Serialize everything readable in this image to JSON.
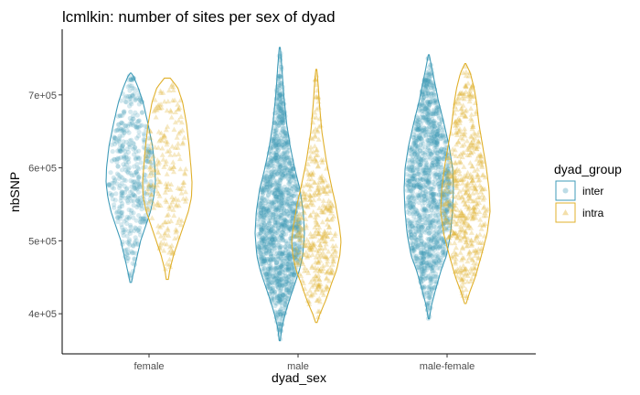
{
  "chart_data": {
    "type": "violin",
    "title": "lcmlkin: number of sites per sex of dyad",
    "xlabel": "dyad_sex",
    "ylabel": "nbSNP",
    "categories": [
      "female",
      "male",
      "male-female"
    ],
    "y_ticks": [
      400000,
      500000,
      600000,
      700000
    ],
    "y_tick_labels": [
      "4e+05",
      "5e+05",
      "6e+05",
      "7e+05"
    ],
    "ylim": [
      345000,
      790000
    ],
    "legend": {
      "title": "dyad_group",
      "position": "right",
      "entries": [
        "inter",
        "intra"
      ]
    },
    "series": [
      {
        "name": "inter",
        "color": "#3f9bb8",
        "marker": "circle",
        "groups": [
          {
            "category": "female",
            "min": 443000,
            "max": 730000,
            "n_points": 450,
            "profile": [
              [
                443000,
                0.03
              ],
              [
                455000,
                0.1
              ],
              [
                470000,
                0.2
              ],
              [
                500000,
                0.4
              ],
              [
                520000,
                0.6
              ],
              [
                540000,
                0.8
              ],
              [
                560000,
                0.93
              ],
              [
                580000,
                1.0
              ],
              [
                600000,
                0.98
              ],
              [
                630000,
                0.88
              ],
              [
                660000,
                0.7
              ],
              [
                690000,
                0.5
              ],
              [
                710000,
                0.3
              ],
              [
                725000,
                0.12
              ],
              [
                730000,
                0.02
              ]
            ]
          },
          {
            "category": "male",
            "min": 363000,
            "max": 765000,
            "n_points": 1400,
            "profile": [
              [
                363000,
                0.02
              ],
              [
                380000,
                0.08
              ],
              [
                400000,
                0.22
              ],
              [
                420000,
                0.4
              ],
              [
                440000,
                0.6
              ],
              [
                460000,
                0.8
              ],
              [
                480000,
                0.93
              ],
              [
                510000,
                1.0
              ],
              [
                540000,
                0.95
              ],
              [
                570000,
                0.82
              ],
              [
                600000,
                0.6
              ],
              [
                630000,
                0.42
              ],
              [
                660000,
                0.28
              ],
              [
                700000,
                0.16
              ],
              [
                740000,
                0.08
              ],
              [
                765000,
                0.02
              ]
            ]
          },
          {
            "category": "male-female",
            "min": 393000,
            "max": 755000,
            "n_points": 1300,
            "profile": [
              [
                393000,
                0.02
              ],
              [
                410000,
                0.1
              ],
              [
                430000,
                0.25
              ],
              [
                460000,
                0.5
              ],
              [
                480000,
                0.72
              ],
              [
                510000,
                0.88
              ],
              [
                540000,
                0.96
              ],
              [
                570000,
                1.0
              ],
              [
                600000,
                0.96
              ],
              [
                630000,
                0.82
              ],
              [
                660000,
                0.62
              ],
              [
                690000,
                0.4
              ],
              [
                720000,
                0.22
              ],
              [
                740000,
                0.1
              ],
              [
                755000,
                0.02
              ]
            ]
          }
        ]
      },
      {
        "name": "intra",
        "color": "#e0b02b",
        "marker": "triangle",
        "groups": [
          {
            "category": "female",
            "min": 447000,
            "max": 723000,
            "n_points": 220,
            "profile": [
              [
                447000,
                0.04
              ],
              [
                460000,
                0.1
              ],
              [
                480000,
                0.25
              ],
              [
                500000,
                0.45
              ],
              [
                520000,
                0.65
              ],
              [
                540000,
                0.85
              ],
              [
                560000,
                0.98
              ],
              [
                580000,
                1.0
              ],
              [
                600000,
                0.96
              ],
              [
                630000,
                0.88
              ],
              [
                660000,
                0.78
              ],
              [
                690000,
                0.62
              ],
              [
                710000,
                0.42
              ],
              [
                723000,
                0.12
              ]
            ]
          },
          {
            "category": "male",
            "min": 388000,
            "max": 735000,
            "n_points": 380,
            "profile": [
              [
                388000,
                0.03
              ],
              [
                400000,
                0.15
              ],
              [
                420000,
                0.4
              ],
              [
                440000,
                0.6
              ],
              [
                460000,
                0.82
              ],
              [
                480000,
                0.95
              ],
              [
                500000,
                1.0
              ],
              [
                520000,
                0.93
              ],
              [
                550000,
                0.78
              ],
              [
                580000,
                0.58
              ],
              [
                610000,
                0.4
              ],
              [
                650000,
                0.22
              ],
              [
                690000,
                0.12
              ],
              [
                720000,
                0.06
              ],
              [
                735000,
                0.02
              ]
            ]
          },
          {
            "category": "male-female",
            "min": 414000,
            "max": 743000,
            "n_points": 520,
            "profile": [
              [
                414000,
                0.03
              ],
              [
                430000,
                0.18
              ],
              [
                450000,
                0.4
              ],
              [
                480000,
                0.65
              ],
              [
                510000,
                0.88
              ],
              [
                540000,
                1.0
              ],
              [
                570000,
                0.96
              ],
              [
                600000,
                0.85
              ],
              [
                630000,
                0.7
              ],
              [
                660000,
                0.55
              ],
              [
                690000,
                0.45
              ],
              [
                710000,
                0.35
              ],
              [
                730000,
                0.2
              ],
              [
                743000,
                0.02
              ]
            ]
          }
        ]
      }
    ]
  }
}
